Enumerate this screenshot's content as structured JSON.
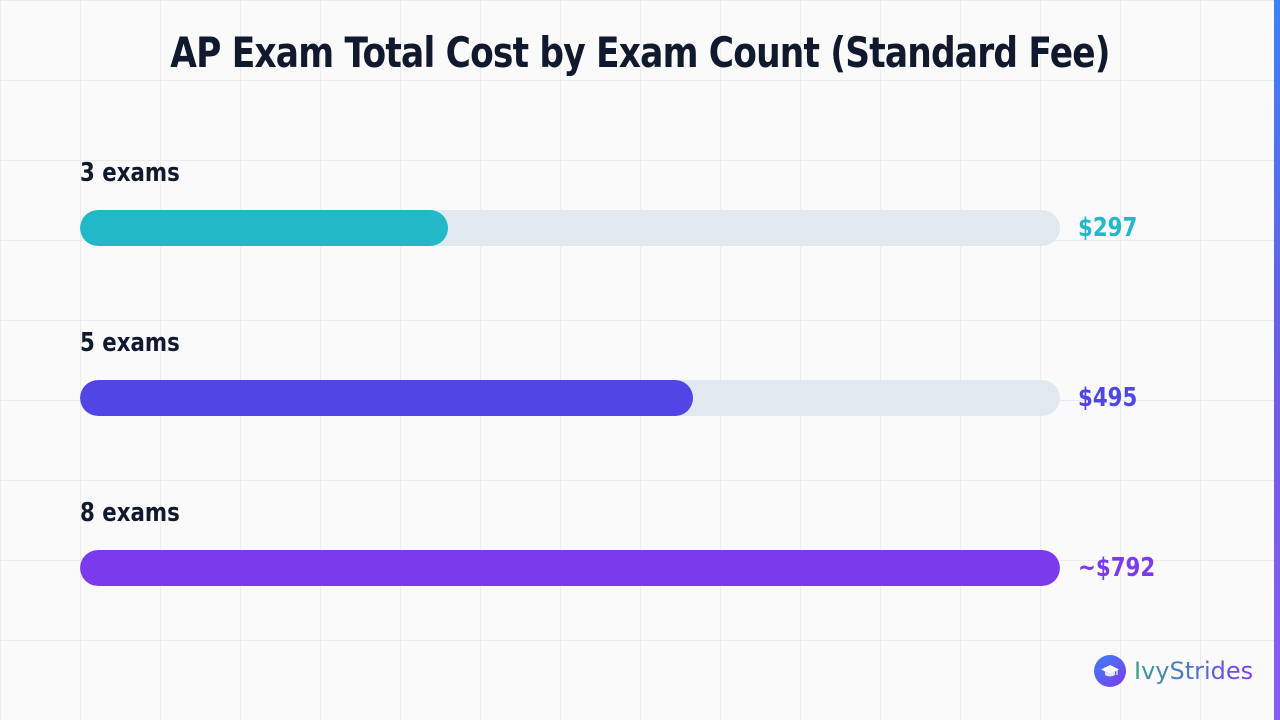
{
  "chart_data": {
    "type": "bar",
    "orientation": "horizontal",
    "title": "AP Exam Total Cost by Exam Count (Standard Fee)",
    "categories": [
      "3 exams",
      "5 exams",
      "8 exams"
    ],
    "values": [
      297,
      495,
      792
    ],
    "value_labels": [
      "$297",
      "$495",
      "~$792"
    ],
    "colors": [
      "#22b8c8",
      "#4f46e5",
      "#7c3aed"
    ],
    "track_color": "#e2e8f0",
    "xlim": [
      0,
      792
    ],
    "grid": true,
    "legend": "none"
  },
  "brand": {
    "name": "IvyStrides",
    "icon": "graduation-cap-icon"
  }
}
